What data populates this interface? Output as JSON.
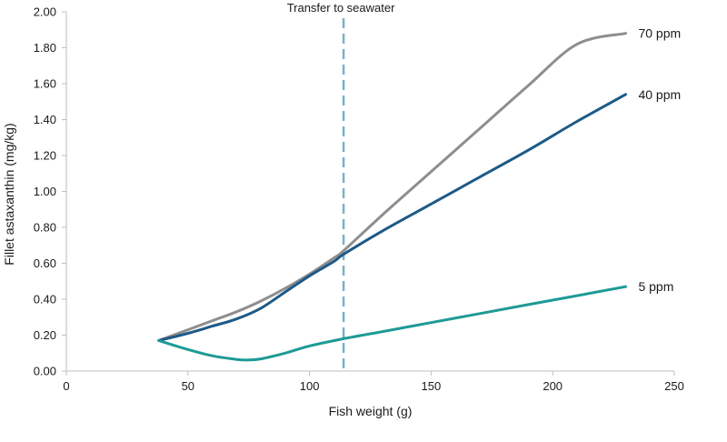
{
  "chart_data": {
    "type": "line",
    "title": "",
    "xlabel": "Fish weight (g)",
    "ylabel": "Fillet astaxanthin (mg/kg)",
    "xlim": [
      0,
      250
    ],
    "ylim": [
      0,
      2.0
    ],
    "x_ticks": [
      0,
      50,
      100,
      150,
      200,
      250
    ],
    "x_tick_labels": [
      "0",
      "50",
      "100",
      "150",
      "200",
      "250"
    ],
    "y_ticks": [
      0,
      0.2,
      0.4,
      0.6,
      0.8,
      1.0,
      1.2,
      1.4,
      1.6,
      1.8,
      2.0
    ],
    "y_tick_labels": [
      "0.00",
      "0.20",
      "0.40",
      "0.60",
      "0.80",
      "1.00",
      "1.20",
      "1.40",
      "1.60",
      "1.80",
      "2.00"
    ],
    "grid": false,
    "legend": "none",
    "series": [
      {
        "name": "70 ppm",
        "color": "#8e8e8e",
        "x": [
          38,
          50,
          60,
          70,
          80,
          90,
          100,
          110,
          114,
          130,
          150,
          170,
          190,
          210,
          230
        ],
        "y": [
          0.17,
          0.23,
          0.28,
          0.33,
          0.39,
          0.46,
          0.54,
          0.63,
          0.67,
          0.87,
          1.11,
          1.35,
          1.59,
          1.82,
          1.88
        ]
      },
      {
        "name": "40 ppm",
        "color": "#1d5a87",
        "x": [
          38,
          50,
          60,
          70,
          80,
          90,
          100,
          110,
          114,
          130,
          150,
          170,
          190,
          210,
          230
        ],
        "y": [
          0.17,
          0.21,
          0.25,
          0.29,
          0.35,
          0.44,
          0.53,
          0.61,
          0.65,
          0.78,
          0.93,
          1.08,
          1.23,
          1.39,
          1.54
        ]
      },
      {
        "name": "5 ppm",
        "color": "#1e9a96",
        "x": [
          38,
          50,
          60,
          70,
          75,
          80,
          90,
          100,
          114,
          130,
          150,
          170,
          190,
          210,
          230
        ],
        "y": [
          0.17,
          0.12,
          0.085,
          0.065,
          0.062,
          0.068,
          0.1,
          0.14,
          0.18,
          0.22,
          0.27,
          0.32,
          0.37,
          0.42,
          0.47
        ]
      }
    ],
    "annotations": [
      {
        "type": "vline",
        "x": 114,
        "text": "Transfer to seawater",
        "color": "#7ab0c6"
      }
    ]
  }
}
